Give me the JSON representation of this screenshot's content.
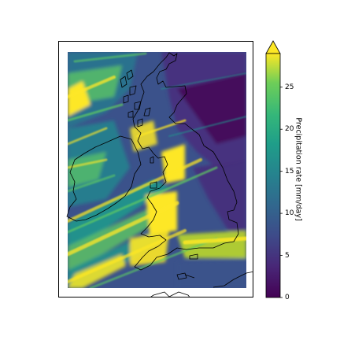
{
  "colorbar": {
    "label": "Precipitation rate [mm/day]",
    "ticks": [
      "0",
      "5",
      "10",
      "15",
      "20",
      "25"
    ],
    "min": 0,
    "max": 29,
    "extend": "max",
    "colormap": [
      "#440154",
      "#3b528b",
      "#21918c",
      "#5ec962",
      "#fde725"
    ]
  },
  "map": {
    "region": "British Isles",
    "field": "precipitation",
    "coastline_color": "#000000"
  }
}
